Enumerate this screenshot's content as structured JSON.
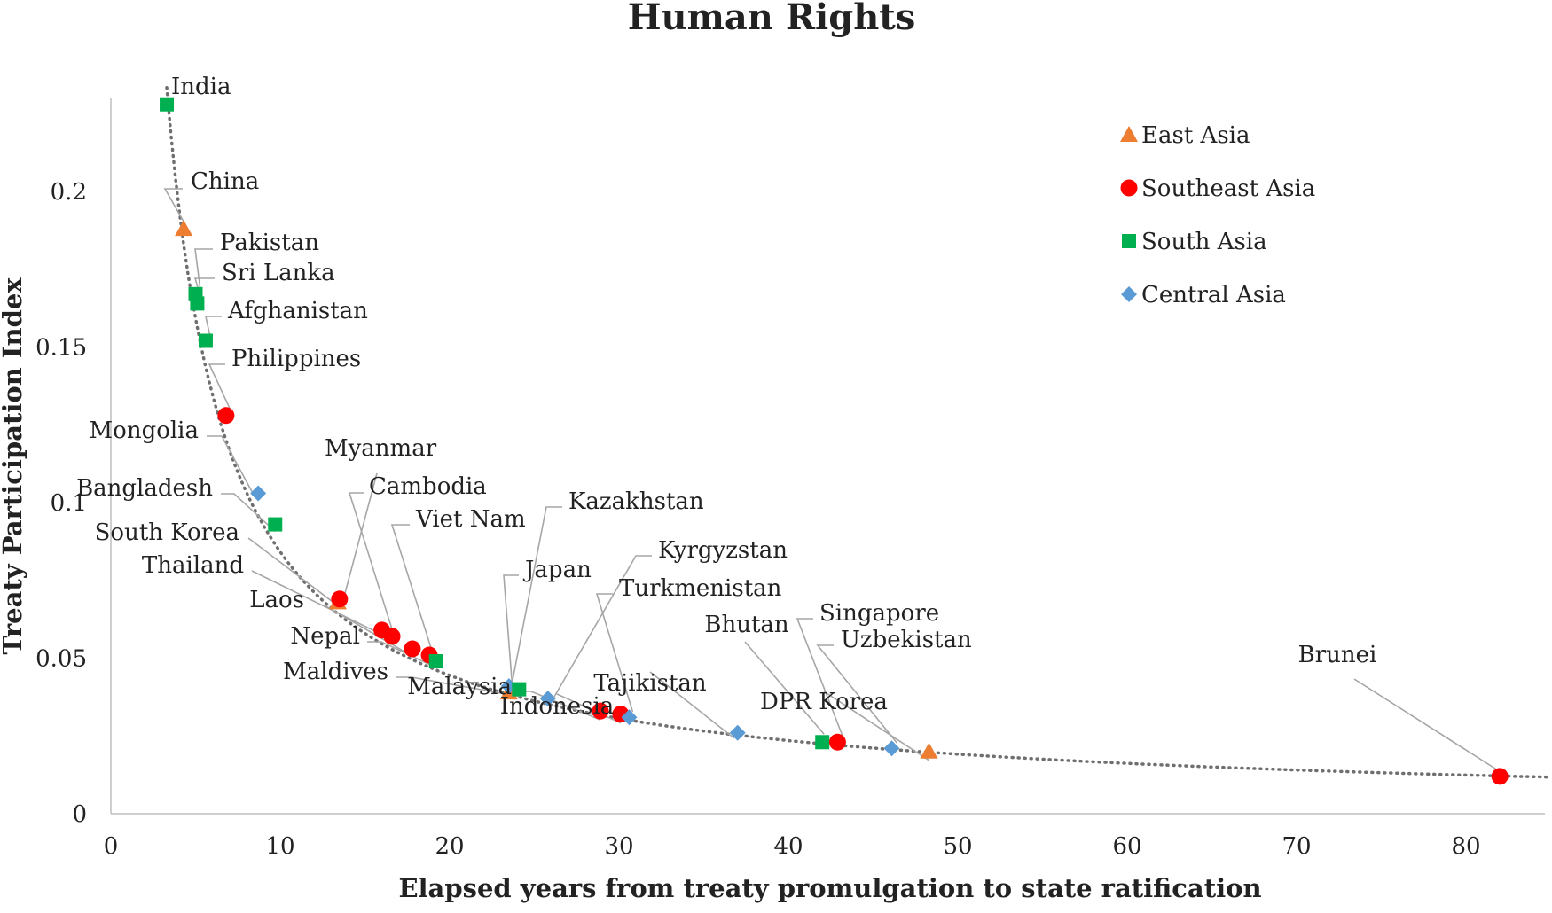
{
  "chart_data": {
    "type": "scatter",
    "title": "Human Rights",
    "xlabel": "Elapsed years from treaty promulgation to state ratification",
    "ylabel": "Treaty Participation Index",
    "xlim": [
      0,
      85
    ],
    "ylim": [
      0,
      0.23
    ],
    "xticks": [
      "0",
      "10",
      "20",
      "30",
      "40",
      "50",
      "60",
      "70",
      "80"
    ],
    "yticks": [
      "0",
      "0.05",
      "0.1",
      "0.15",
      "0.2"
    ],
    "legend_position": "top-right",
    "trendline": "dotted",
    "groups": [
      {
        "name": "East Asia",
        "marker": "triangle",
        "color": "#ED7D31"
      },
      {
        "name": "Southeast Asia",
        "marker": "circle",
        "color": "#FF0000"
      },
      {
        "name": "South Asia",
        "marker": "square",
        "color": "#00B050"
      },
      {
        "name": "Central Asia",
        "marker": "diamond",
        "color": "#5B9BD5"
      }
    ],
    "points": [
      {
        "label": "India",
        "group": "South Asia",
        "x": 3.3,
        "y": 0.228
      },
      {
        "label": "China",
        "group": "East Asia",
        "x": 4.3,
        "y": 0.188
      },
      {
        "label": "Pakistan",
        "group": "South Asia",
        "x": 5.0,
        "y": 0.167
      },
      {
        "label": "Sri Lanka",
        "group": "South Asia",
        "x": 5.1,
        "y": 0.164
      },
      {
        "label": "Afghanistan",
        "group": "South Asia",
        "x": 5.6,
        "y": 0.152
      },
      {
        "label": "Philippines",
        "group": "Southeast Asia",
        "x": 6.8,
        "y": 0.128
      },
      {
        "label": "Mongolia",
        "group": "Central Asia",
        "x": 8.7,
        "y": 0.103
      },
      {
        "label": "Bangladesh",
        "group": "South Asia",
        "x": 9.7,
        "y": 0.093
      },
      {
        "label": "South Korea",
        "group": "East Asia",
        "x": 13.4,
        "y": 0.068
      },
      {
        "label": "Myanmar",
        "group": "Southeast Asia",
        "x": 13.5,
        "y": 0.069
      },
      {
        "label": "Thailand",
        "group": "Southeast Asia",
        "x": 16.0,
        "y": 0.059
      },
      {
        "label": "Cambodia",
        "group": "Southeast Asia",
        "x": 16.6,
        "y": 0.057
      },
      {
        "label": "Laos",
        "group": "Southeast Asia",
        "x": 17.8,
        "y": 0.053
      },
      {
        "label": "Viet Nam",
        "group": "Southeast Asia",
        "x": 18.8,
        "y": 0.051
      },
      {
        "label": "Nepal",
        "group": "South Asia",
        "x": 19.2,
        "y": 0.049
      },
      {
        "label": "Japan",
        "group": "East Asia",
        "x": 23.5,
        "y": 0.039
      },
      {
        "label": "Kazakhstan",
        "group": "Central Asia",
        "x": 23.5,
        "y": 0.041
      },
      {
        "label": "Maldives",
        "group": "South Asia",
        "x": 24.1,
        "y": 0.04
      },
      {
        "label": "Kyrgyzstan",
        "group": "Central Asia",
        "x": 25.8,
        "y": 0.037
      },
      {
        "label": "Malaysia",
        "group": "Southeast Asia",
        "x": 28.9,
        "y": 0.033
      },
      {
        "label": "Indonesia",
        "group": "Southeast Asia",
        "x": 30.1,
        "y": 0.032
      },
      {
        "label": "Turkmenistan",
        "group": "Central Asia",
        "x": 30.6,
        "y": 0.031
      },
      {
        "label": "Tajikistan",
        "group": "Central Asia",
        "x": 37.0,
        "y": 0.026
      },
      {
        "label": "Bhutan",
        "group": "South Asia",
        "x": 42.0,
        "y": 0.023
      },
      {
        "label": "Singapore",
        "group": "Southeast Asia",
        "x": 42.9,
        "y": 0.023
      },
      {
        "label": "Uzbekistan",
        "group": "Central Asia",
        "x": 46.1,
        "y": 0.021
      },
      {
        "label": "DPR Korea",
        "group": "East Asia",
        "x": 48.3,
        "y": 0.02
      },
      {
        "label": "Brunei",
        "group": "Southeast Asia",
        "x": 82.0,
        "y": 0.012
      }
    ]
  }
}
